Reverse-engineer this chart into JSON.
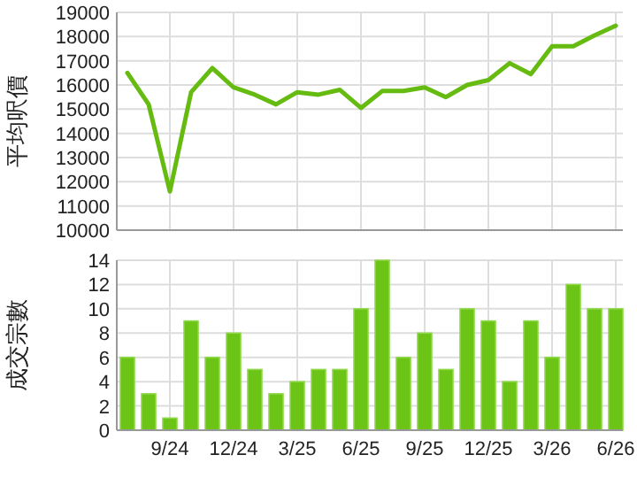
{
  "chart_data": [
    {
      "type": "line",
      "ylabel": "平均呎價",
      "categories": [
        null,
        null,
        null,
        null,
        null,
        null,
        null,
        null,
        null,
        null,
        null,
        null,
        null,
        null,
        null,
        null,
        null,
        null,
        null,
        null,
        null,
        null,
        null,
        null
      ],
      "tick_labels": "y",
      "values": [
        16500,
        15200,
        11600,
        15700,
        16700,
        15900,
        15600,
        15200,
        15700,
        15600,
        15800,
        15050,
        15750,
        15750,
        15900,
        15500,
        16000,
        16200,
        16900,
        16450,
        17600,
        17600,
        18050,
        18450
      ],
      "color": "#66bb11",
      "ylim": [
        10000,
        19000
      ],
      "yticks": [
        10000,
        11000,
        12000,
        13000,
        14000,
        15000,
        16000,
        17000,
        18000,
        19000
      ],
      "grid": true
    },
    {
      "type": "bar",
      "ylabel": "成交宗數",
      "categories": [
        null,
        null,
        "9/24",
        null,
        null,
        "12/24",
        null,
        null,
        "3/25",
        null,
        null,
        "6/25",
        null,
        null,
        "9/25",
        null,
        null,
        "12/25",
        null,
        null,
        "3/26",
        null,
        null,
        "6/26"
      ],
      "values": [
        6,
        3,
        1,
        9,
        6,
        8,
        5,
        3,
        4,
        5,
        5,
        10,
        14,
        6,
        8,
        5,
        10,
        9,
        4,
        9,
        6,
        12,
        10,
        10
      ],
      "color": "#6cc417",
      "ylim": [
        0,
        14
      ],
      "yticks": [
        0,
        2,
        4,
        6,
        8,
        10,
        12,
        14
      ],
      "grid": true
    }
  ]
}
